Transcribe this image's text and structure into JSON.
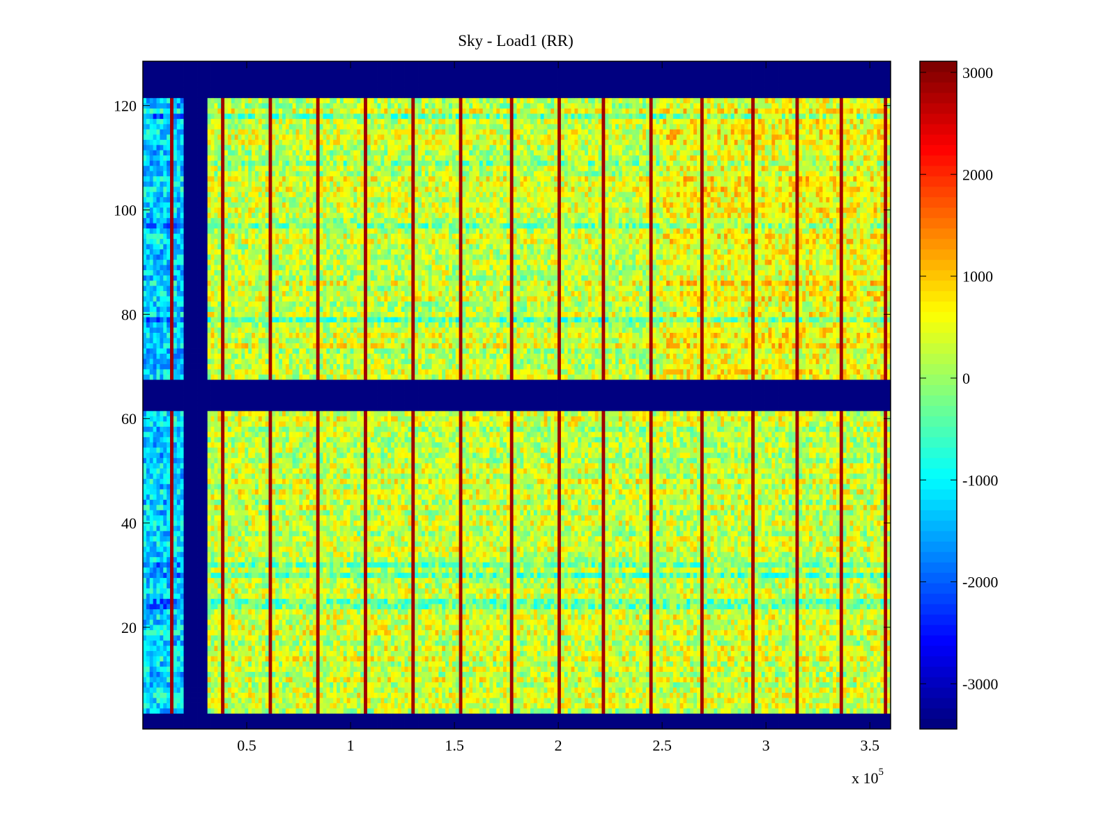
{
  "chart_data": {
    "type": "heatmap",
    "title": "Sky - Load1 (RR)",
    "xlabel": "",
    "ylabel": "",
    "x_multiplier_label": "x 10",
    "x_multiplier_exponent": "5",
    "xlim": [
      0,
      360000
    ],
    "ylim": [
      0.5,
      128.5
    ],
    "clim": [
      -3444,
      3109
    ],
    "colormap": "jet",
    "x_ticks": [
      {
        "value": 50000,
        "label": "0.5"
      },
      {
        "value": 100000,
        "label": "1"
      },
      {
        "value": 150000,
        "label": "1.5"
      },
      {
        "value": 200000,
        "label": "2"
      },
      {
        "value": 250000,
        "label": "2.5"
      },
      {
        "value": 300000,
        "label": "3"
      },
      {
        "value": 350000,
        "label": "3.5"
      }
    ],
    "y_ticks": [
      {
        "value": 20,
        "label": "20"
      },
      {
        "value": 40,
        "label": "40"
      },
      {
        "value": 60,
        "label": "60"
      },
      {
        "value": 80,
        "label": "80"
      },
      {
        "value": 100,
        "label": "100"
      },
      {
        "value": 120,
        "label": "120"
      }
    ],
    "colorbar_ticks": [
      {
        "value": 3000,
        "label": "3000"
      },
      {
        "value": 2000,
        "label": "2000"
      },
      {
        "value": 1000,
        "label": "1000"
      },
      {
        "value": 0,
        "label": "0"
      },
      {
        "value": -1000,
        "label": "-1000"
      },
      {
        "value": -2000,
        "label": "-2000"
      },
      {
        "value": -3000,
        "label": "-3000"
      }
    ],
    "fill_value": -3444,
    "masked_row_ranges": [
      [
        0.5,
        3.5
      ],
      [
        61.5,
        67.5
      ],
      [
        121.5,
        128.5
      ]
    ],
    "masked_x_range": [
      19000,
      30500
    ],
    "region_means": {
      "left_x_below_19000": -1200,
      "main": 300,
      "upper_right": 600
    },
    "noise_amplitude": 650,
    "spike_x_values": [
      14000,
      38000,
      62000,
      85000,
      107000,
      130000,
      153000,
      178000,
      200000,
      222000,
      245000,
      269000,
      293000,
      315000,
      337000,
      358000
    ],
    "spike_value": 2900,
    "grid": false
  }
}
